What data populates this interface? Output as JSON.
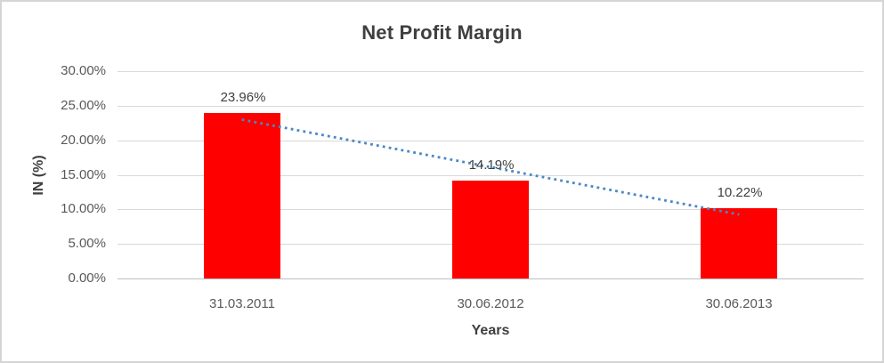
{
  "frame": {
    "background": "#ffffff",
    "border_color": "#d5d5d5"
  },
  "chart_data": {
    "type": "bar",
    "title": "Net Profit Margin",
    "xlabel": "Years",
    "ylabel": "IN (%)",
    "categories": [
      "31.03.2011",
      "30.06.2012",
      "30.06.2013"
    ],
    "values": [
      23.96,
      14.19,
      10.22
    ],
    "data_labels": [
      "23.96%",
      "14.19%",
      "10.22%"
    ],
    "ylim": [
      0,
      30
    ],
    "ytick_step": 5,
    "ytick_labels": [
      "0.00%",
      "5.00%",
      "10.00%",
      "15.00%",
      "20.00%",
      "25.00%",
      "30.00%"
    ],
    "grid": true,
    "legend": "none",
    "bar_color": "#ff0000",
    "trendline": {
      "type": "linear",
      "style": "dotted",
      "color": "#4a87c5"
    },
    "colors": {
      "title": "#3f3f3f",
      "tick_label": "#595959",
      "data_label": "#3f3f3f",
      "gridline": "#d9d9d9",
      "axis_line": "#bfbfbf"
    }
  }
}
